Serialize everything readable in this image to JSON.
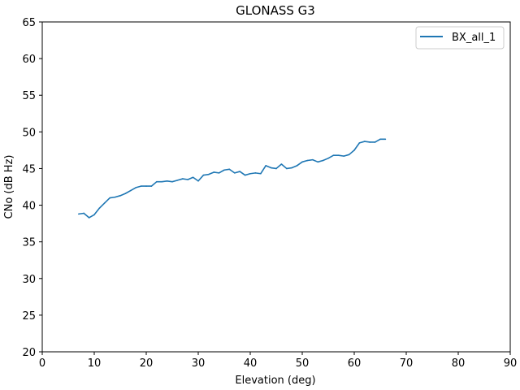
{
  "chart_data": {
    "type": "line",
    "title": "GLONASS G3",
    "xlabel": "Elevation (deg)",
    "ylabel": "CNo (dB Hz)",
    "xlim": [
      0,
      90
    ],
    "ylim": [
      20,
      65
    ],
    "xticks": [
      0,
      10,
      20,
      30,
      40,
      50,
      60,
      70,
      80,
      90
    ],
    "yticks": [
      20,
      25,
      30,
      35,
      40,
      45,
      50,
      55,
      60,
      65
    ],
    "grid": false,
    "legend_position": "top-right",
    "series": [
      {
        "name": "BX_all_1",
        "color": "#1f77b4",
        "x": [
          7,
          8,
          9,
          10,
          11,
          12,
          13,
          14,
          15,
          16,
          17,
          18,
          19,
          20,
          21,
          22,
          23,
          24,
          25,
          26,
          27,
          28,
          29,
          30,
          31,
          32,
          33,
          34,
          35,
          36,
          37,
          38,
          39,
          40,
          41,
          42,
          43,
          44,
          45,
          46,
          47,
          48,
          49,
          50,
          51,
          52,
          53,
          54,
          55,
          56,
          57,
          58,
          59,
          60,
          61,
          62,
          63,
          64,
          65,
          66
        ],
        "y": [
          38.8,
          38.9,
          38.3,
          38.7,
          39.6,
          40.3,
          41.0,
          41.1,
          41.3,
          41.6,
          42.0,
          42.4,
          42.6,
          42.6,
          42.6,
          43.2,
          43.2,
          43.3,
          43.2,
          43.4,
          43.6,
          43.5,
          43.8,
          43.3,
          44.1,
          44.2,
          44.5,
          44.4,
          44.8,
          44.9,
          44.4,
          44.6,
          44.1,
          44.3,
          44.4,
          44.3,
          45.4,
          45.1,
          45.0,
          45.6,
          45.0,
          45.1,
          45.4,
          45.9,
          46.1,
          46.2,
          45.9,
          46.1,
          46.4,
          46.8,
          46.8,
          46.7,
          46.9,
          47.5,
          48.5,
          48.7,
          48.6,
          48.6,
          49.0,
          49.0
        ]
      }
    ]
  }
}
